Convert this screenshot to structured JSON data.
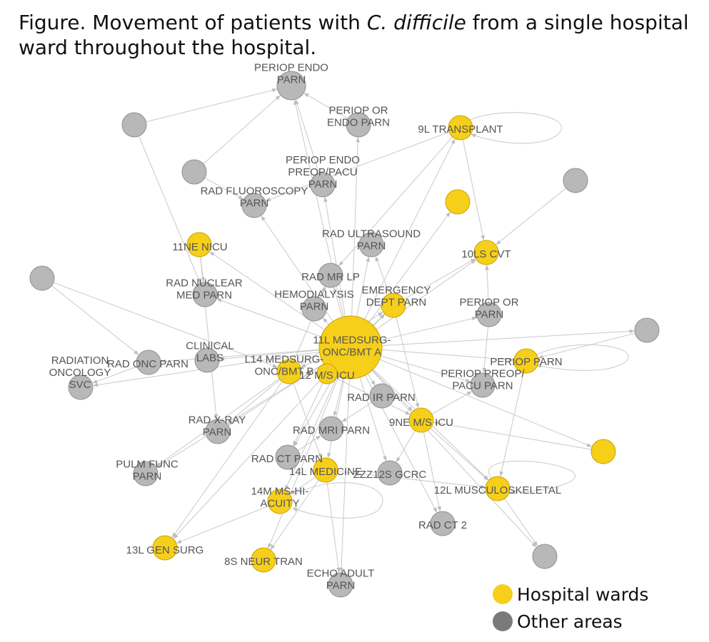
{
  "title": {
    "prefix": "Figure. Movement of patients with ",
    "emphasis": "C. difficile",
    "suffix": " from a single hospital ward throughout the hospital."
  },
  "colors": {
    "hospital_ward": "#f6cf1b",
    "other_area": "#b8b8b8",
    "edge": "#c9c9c9",
    "label": "#555555"
  },
  "legend": [
    {
      "label": "Hospital wards",
      "color": "#f6cf1b"
    },
    {
      "label": "Other areas",
      "color": "#7a7a7a"
    }
  ],
  "nodes": [
    {
      "id": "periop_endo_parn",
      "type": "other",
      "lines": [
        "PERIOP ENDO",
        "PARN"
      ]
    },
    {
      "id": "unlabeled_gray_1",
      "type": "other",
      "lines": []
    },
    {
      "id": "periop_or_endo_parn",
      "type": "other",
      "lines": [
        "PERIOP OR",
        "ENDO PARN"
      ]
    },
    {
      "id": "9l_transplant",
      "type": "ward",
      "lines": [
        "9L TRANSPLANT"
      ]
    },
    {
      "id": "unlabeled_gray_2",
      "type": "other",
      "lines": []
    },
    {
      "id": "periop_endo_preop_pacu_parn",
      "type": "other",
      "lines": [
        "PERIOP ENDO",
        "PREOP/PACU",
        "PARN"
      ]
    },
    {
      "id": "unlabeled_gray_3",
      "type": "other",
      "lines": []
    },
    {
      "id": "rad_fluoroscopy_parn",
      "type": "other",
      "lines": [
        "RAD FLUOROSCOPY",
        "PARN"
      ]
    },
    {
      "id": "unlabeled_ward_1",
      "type": "ward",
      "lines": []
    },
    {
      "id": "11ne_nicu",
      "type": "ward",
      "lines": [
        "11NE NICU"
      ]
    },
    {
      "id": "rad_ultrasound_parn",
      "type": "other",
      "lines": [
        "RAD ULTRASOUND",
        "PARN"
      ]
    },
    {
      "id": "10ls_cvt",
      "type": "ward",
      "lines": [
        "10LS CVT"
      ]
    },
    {
      "id": "rad_mr_lp",
      "type": "other",
      "lines": [
        "RAD MR LP"
      ]
    },
    {
      "id": "unlabeled_gray_4",
      "type": "other",
      "lines": []
    },
    {
      "id": "rad_nuclear_med_parn",
      "type": "other",
      "lines": [
        "RAD NUCLEAR",
        "MED PARN"
      ]
    },
    {
      "id": "hemodialysis_parn",
      "type": "other",
      "lines": [
        "HEMODIALYSIS",
        "PARN"
      ]
    },
    {
      "id": "emergency_dept_parn",
      "type": "ward",
      "lines": [
        "EMERGENCY",
        "DEPT PARN"
      ]
    },
    {
      "id": "periop_or_parn",
      "type": "other",
      "lines": [
        "PERIOP OR",
        "PARN"
      ]
    },
    {
      "id": "unlabeled_gray_5",
      "type": "other",
      "lines": []
    },
    {
      "id": "11l_medsurg_onc_bmt_a",
      "type": "ward",
      "lines": [
        "11L MEDSURG-",
        "ONC/BMT A"
      ]
    },
    {
      "id": "clinical_labs",
      "type": "other",
      "lines": [
        "CLINICAL",
        "LABS"
      ]
    },
    {
      "id": "rad_onc_parn",
      "type": "other",
      "lines": [
        "RAD ONC PARN"
      ]
    },
    {
      "id": "l14_medsurg_onc_bmt_b",
      "type": "ward",
      "lines": [
        "L14 MEDSURG-",
        "ONC/BMT B"
      ]
    },
    {
      "id": "12_m_s_icu",
      "type": "ward",
      "lines": [
        "12 M/S ICU"
      ]
    },
    {
      "id": "periop_parn",
      "type": "ward",
      "lines": [
        "PERIOP PARN"
      ]
    },
    {
      "id": "radiation_oncology_svc",
      "type": "other",
      "lines": [
        "RADIATION",
        "ONCOLOGY",
        "SVC"
      ]
    },
    {
      "id": "periop_preop_pacu_parn",
      "type": "other",
      "lines": [
        "PERIOP PREOP/",
        "PACU PARN"
      ]
    },
    {
      "id": "rad_ir_parn",
      "type": "other",
      "lines": [
        "RAD IR PARN"
      ]
    },
    {
      "id": "9ne_m_s_icu",
      "type": "ward",
      "lines": [
        "9NE M/S ICU"
      ]
    },
    {
      "id": "rad_x_ray_parn",
      "type": "other",
      "lines": [
        "RAD X-RAY",
        "PARN"
      ]
    },
    {
      "id": "rad_mri_parn",
      "type": "other",
      "lines": [
        "RAD MRI PARN"
      ]
    },
    {
      "id": "unlabeled_ward_2",
      "type": "ward",
      "lines": []
    },
    {
      "id": "rad_ct_parn",
      "type": "other",
      "lines": [
        "RAD CT PARN"
      ]
    },
    {
      "id": "pulm_func_parn",
      "type": "other",
      "lines": [
        "PULM FUNC",
        "PARN"
      ]
    },
    {
      "id": "14l_medicine",
      "type": "ward",
      "lines": [
        "14L MEDICINE"
      ]
    },
    {
      "id": "zzz12s_gcrc",
      "type": "other",
      "lines": [
        "ZZZ12S GCRC"
      ]
    },
    {
      "id": "12l_musculoskeletal",
      "type": "ward",
      "lines": [
        "12L MUSCULOSKELETAL"
      ]
    },
    {
      "id": "14m_ms_hi_acuity",
      "type": "ward",
      "lines": [
        "14M MS-HI-",
        "ACUITY"
      ]
    },
    {
      "id": "rad_ct_2",
      "type": "other",
      "lines": [
        "RAD CT 2"
      ]
    },
    {
      "id": "13l_gen_surg",
      "type": "ward",
      "lines": [
        "13L GEN SURG"
      ]
    },
    {
      "id": "8s_neur_tran",
      "type": "ward",
      "lines": [
        "8S NEUR TRAN"
      ]
    },
    {
      "id": "unlabeled_gray_6",
      "type": "other",
      "lines": []
    },
    {
      "id": "echo_adult_parn",
      "type": "other",
      "lines": [
        "ECHO ADULT",
        "PARN"
      ]
    }
  ],
  "edges": [
    [
      "11l_medsurg_onc_bmt_a",
      "periop_endo_parn"
    ],
    [
      "11l_medsurg_onc_bmt_a",
      "periop_or_endo_parn"
    ],
    [
      "11l_medsurg_onc_bmt_a",
      "9l_transplant"
    ],
    [
      "11l_medsurg_onc_bmt_a",
      "periop_endo_preop_pacu_parn"
    ],
    [
      "11l_medsurg_onc_bmt_a",
      "rad_fluoroscopy_parn"
    ],
    [
      "11l_medsurg_onc_bmt_a",
      "unlabeled_ward_1"
    ],
    [
      "11l_medsurg_onc_bmt_a",
      "11ne_nicu"
    ],
    [
      "11l_medsurg_onc_bmt_a",
      "rad_ultrasound_parn"
    ],
    [
      "11l_medsurg_onc_bmt_a",
      "10ls_cvt"
    ],
    [
      "11l_medsurg_onc_bmt_a",
      "rad_mr_lp"
    ],
    [
      "11l_medsurg_onc_bmt_a",
      "rad_nuclear_med_parn"
    ],
    [
      "11l_medsurg_onc_bmt_a",
      "hemodialysis_parn"
    ],
    [
      "11l_medsurg_onc_bmt_a",
      "emergency_dept_parn"
    ],
    [
      "11l_medsurg_onc_bmt_a",
      "periop_or_parn"
    ],
    [
      "11l_medsurg_onc_bmt_a",
      "unlabeled_gray_5"
    ],
    [
      "11l_medsurg_onc_bmt_a",
      "clinical_labs"
    ],
    [
      "11l_medsurg_onc_bmt_a",
      "rad_onc_parn"
    ],
    [
      "11l_medsurg_onc_bmt_a",
      "l14_medsurg_onc_bmt_b"
    ],
    [
      "11l_medsurg_onc_bmt_a",
      "12_m_s_icu"
    ],
    [
      "11l_medsurg_onc_bmt_a",
      "periop_parn"
    ],
    [
      "11l_medsurg_onc_bmt_a",
      "radiation_oncology_svc"
    ],
    [
      "11l_medsurg_onc_bmt_a",
      "periop_preop_pacu_parn"
    ],
    [
      "11l_medsurg_onc_bmt_a",
      "rad_ir_parn"
    ],
    [
      "11l_medsurg_onc_bmt_a",
      "9ne_m_s_icu"
    ],
    [
      "11l_medsurg_onc_bmt_a",
      "rad_x_ray_parn"
    ],
    [
      "11l_medsurg_onc_bmt_a",
      "rad_mri_parn"
    ],
    [
      "11l_medsurg_onc_bmt_a",
      "unlabeled_ward_2"
    ],
    [
      "11l_medsurg_onc_bmt_a",
      "rad_ct_parn"
    ],
    [
      "11l_medsurg_onc_bmt_a",
      "pulm_func_parn"
    ],
    [
      "11l_medsurg_onc_bmt_a",
      "14l_medicine"
    ],
    [
      "11l_medsurg_onc_bmt_a",
      "zzz12s_gcrc"
    ],
    [
      "11l_medsurg_onc_bmt_a",
      "12l_musculoskeletal"
    ],
    [
      "11l_medsurg_onc_bmt_a",
      "14m_ms_hi_acuity"
    ],
    [
      "11l_medsurg_onc_bmt_a",
      "rad_ct_2"
    ],
    [
      "11l_medsurg_onc_bmt_a",
      "13l_gen_surg"
    ],
    [
      "11l_medsurg_onc_bmt_a",
      "8s_neur_tran"
    ],
    [
      "11l_medsurg_onc_bmt_a",
      "echo_adult_parn"
    ],
    [
      "11l_medsurg_onc_bmt_a",
      "unlabeled_gray_6"
    ],
    [
      "unlabeled_gray_1",
      "rad_nuclear_med_parn"
    ],
    [
      "unlabeled_gray_1",
      "periop_endo_parn"
    ],
    [
      "unlabeled_gray_2",
      "rad_fluoroscopy_parn"
    ],
    [
      "unlabeled_gray_2",
      "periop_endo_parn"
    ],
    [
      "unlabeled_gray_3",
      "10ls_cvt"
    ],
    [
      "unlabeled_gray_4",
      "rad_onc_parn"
    ],
    [
      "unlabeled_gray_4",
      "l14_medsurg_onc_bmt_b"
    ],
    [
      "unlabeled_gray_5",
      "periop_parn"
    ],
    [
      "unlabeled_ward_2",
      "9ne_m_s_icu"
    ],
    [
      "9l_transplant",
      "10ls_cvt"
    ],
    [
      "9l_transplant",
      "rad_mr_lp"
    ],
    [
      "9l_transplant",
      "rad_fluoroscopy_parn"
    ],
    [
      "11ne_nicu",
      "rad_nuclear_med_parn"
    ],
    [
      "11ne_nicu",
      "rad_x_ray_parn"
    ],
    [
      "rad_onc_parn",
      "radiation_oncology_svc"
    ],
    [
      "l14_medsurg_onc_bmt_b",
      "rad_x_ray_parn"
    ],
    [
      "l14_medsurg_onc_bmt_b",
      "13l_gen_surg"
    ],
    [
      "l14_medsurg_onc_bmt_b",
      "pulm_func_parn"
    ],
    [
      "l14_medsurg_onc_bmt_b",
      "emergency_dept_parn"
    ],
    [
      "l14_medsurg_onc_bmt_b",
      "rad_mr_lp"
    ],
    [
      "l14_medsurg_onc_bmt_b",
      "14l_medicine"
    ],
    [
      "12_m_s_icu",
      "9ne_m_s_icu"
    ],
    [
      "12_m_s_icu",
      "rad_ct_parn"
    ],
    [
      "12_m_s_icu",
      "emergency_dept_parn"
    ],
    [
      "emergency_dept_parn",
      "rad_ultrasound_parn"
    ],
    [
      "emergency_dept_parn",
      "10ls_cvt"
    ],
    [
      "emergency_dept_parn",
      "9ne_m_s_icu"
    ],
    [
      "9ne_m_s_icu",
      "rad_ct_2"
    ],
    [
      "9ne_m_s_icu",
      "12l_musculoskeletal"
    ],
    [
      "9ne_m_s_icu",
      "zzz12s_gcrc"
    ],
    [
      "9ne_m_s_icu",
      "periop_preop_pacu_parn"
    ],
    [
      "14l_medicine",
      "8s_neur_tran"
    ],
    [
      "14l_medicine",
      "echo_adult_parn"
    ],
    [
      "14l_medicine",
      "14m_ms_hi_acuity"
    ],
    [
      "14l_medicine",
      "12l_musculoskeletal"
    ],
    [
      "12l_musculoskeletal",
      "unlabeled_gray_6"
    ],
    [
      "periop_or_parn",
      "periop_preop_pacu_parn"
    ],
    [
      "periop_or_parn",
      "10ls_cvt"
    ],
    [
      "periop_parn",
      "12l_musculoskeletal"
    ],
    [
      "14m_ms_hi_acuity",
      "13l_gen_surg"
    ],
    [
      "rad_ct_parn",
      "rad_mri_parn"
    ],
    [
      "rad_ir_parn",
      "rad_mri_parn"
    ],
    [
      "periop_endo_preop_pacu_parn",
      "periop_endo_parn"
    ],
    [
      "periop_or_endo_parn",
      "periop_endo_parn"
    ],
    [
      "hemodialysis_parn",
      "rad_mr_lp"
    ]
  ],
  "self_loops": [
    "9l_transplant",
    "periop_parn",
    "12l_musculoskeletal",
    "14m_ms_hi_acuity"
  ]
}
